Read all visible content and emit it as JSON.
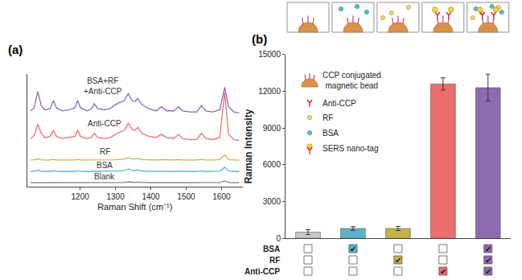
{
  "chart_data": [
    {
      "type": "line",
      "title": "(a)",
      "xlabel": "Raman Shift (cm⁻¹)",
      "x": [
        1060,
        1070,
        1080,
        1090,
        1100,
        1115,
        1124,
        1133,
        1150,
        1170,
        1185,
        1193,
        1201,
        1220,
        1232,
        1240,
        1250,
        1270,
        1285,
        1295,
        1310,
        1325,
        1336,
        1347,
        1355,
        1363,
        1375,
        1395,
        1415,
        1430,
        1445,
        1465,
        1478,
        1490,
        1510,
        1530,
        1543,
        1556,
        1575,
        1595,
        1609,
        1620,
        1635,
        1650
      ],
      "xlim": [
        1050,
        1660
      ],
      "xticks": [
        1200,
        1300,
        1400,
        1500,
        1600
      ],
      "ylim": [
        0,
        110
      ],
      "tick_labels": "x",
      "series": [
        {
          "name": "Blank",
          "color": "#8c8c8c",
          "values": [
            4,
            4,
            4.4,
            4,
            4,
            4,
            4.2,
            4,
            4,
            4,
            4,
            4.2,
            4,
            4,
            4,
            4.2,
            4,
            4,
            4,
            4,
            4.1,
            4.2,
            4.8,
            4.3,
            4.2,
            4.5,
            4.1,
            4,
            4,
            4.1,
            4,
            4,
            4.1,
            4,
            4,
            4,
            4.2,
            4,
            4,
            4.1,
            5.6,
            4.1,
            4,
            4
          ]
        },
        {
          "name": "BSA",
          "color": "#5ab4c8",
          "values": [
            15,
            15.2,
            16.2,
            15.2,
            15,
            15,
            15.6,
            15.1,
            15,
            15,
            15,
            15.6,
            15.1,
            15,
            15,
            15.4,
            15,
            15,
            15,
            15.2,
            15.5,
            15.8,
            17.2,
            16,
            15.8,
            16.5,
            15.4,
            15.1,
            15,
            15.4,
            15,
            15,
            15.3,
            15,
            15,
            15,
            15.5,
            15,
            15,
            15.3,
            19,
            15.4,
            15,
            15
          ]
        },
        {
          "name": "RF",
          "color": "#c4b24a",
          "values": [
            26,
            26.2,
            27.2,
            26.2,
            26,
            26,
            26.6,
            26.1,
            26,
            26,
            26,
            26.6,
            26.1,
            26,
            26,
            26.4,
            26,
            26,
            26,
            26.2,
            26.6,
            27,
            28.4,
            27.2,
            27,
            27.6,
            26.5,
            26.1,
            26,
            26.4,
            26,
            26,
            26.4,
            26,
            26,
            26,
            26.6,
            26,
            26,
            26.4,
            31,
            26.5,
            26,
            26
          ]
        },
        {
          "name": "Anti-CCP",
          "color": "#ee6e6e",
          "values": [
            47,
            50,
            61,
            52,
            48,
            49,
            55,
            49,
            47,
            48,
            49,
            55,
            49,
            47,
            48,
            52,
            48,
            47,
            48,
            50,
            53,
            55,
            62,
            56,
            55,
            58,
            52,
            49,
            48,
            51,
            48,
            47,
            51,
            47,
            46,
            46,
            52,
            47,
            46,
            48,
            92,
            51,
            46,
            45
          ]
        },
        {
          "name": "BSA+RF\n+Anti-CCP",
          "color": "#8c6bb1",
          "values": [
            74,
            77,
            93,
            79,
            75,
            76,
            84,
            77,
            74,
            75,
            77,
            84,
            77,
            74,
            76,
            81,
            76,
            75,
            76,
            79,
            82,
            84,
            91,
            84,
            83,
            86,
            80,
            76,
            74,
            78,
            74,
            74,
            78,
            74,
            73,
            73,
            79,
            74,
            73,
            75,
            97,
            78,
            73,
            72
          ]
        }
      ]
    },
    {
      "type": "bar",
      "title": "(b)",
      "ylabel": "Raman Intensity",
      "categories": [
        null,
        null,
        null,
        null,
        null
      ],
      "values": [
        500,
        800,
        800,
        12600,
        12300
      ],
      "errors": [
        200,
        150,
        170,
        500,
        1100
      ],
      "colors": [
        "#c8c8c8",
        "#5ab4c8",
        "#c4b24a",
        "#ee6e6e",
        "#8c6bb1"
      ],
      "ylim": [
        0,
        15000
      ],
      "yticks": [
        0,
        3000,
        6000,
        9000,
        12000,
        15000
      ],
      "schematic_legend": [
        "CCP conjugated\nmagnetic bead",
        "Anti-CCP",
        "RF",
        "BSA",
        "SERS nano-tag"
      ],
      "conditions": [
        {
          "name": "BSA",
          "checked": [
            false,
            true,
            false,
            false,
            true
          ]
        },
        {
          "name": "RF",
          "checked": [
            false,
            false,
            true,
            false,
            true
          ]
        },
        {
          "name": "Anti-CCP",
          "checked": [
            false,
            false,
            false,
            true,
            true
          ]
        }
      ],
      "check_mark": "✔"
    }
  ]
}
